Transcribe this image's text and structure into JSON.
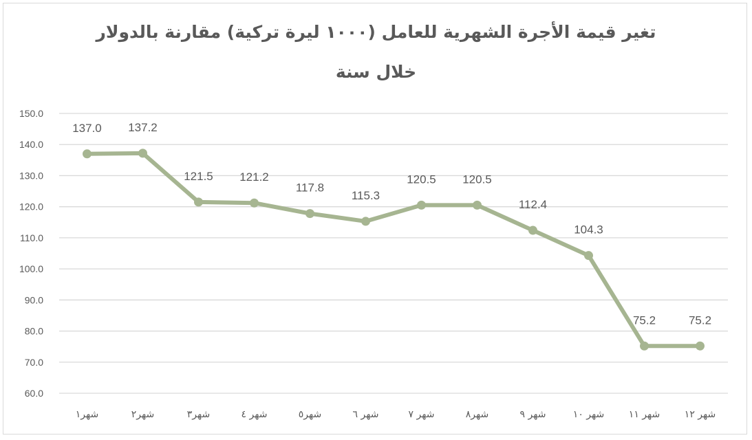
{
  "chart_data": {
    "type": "line",
    "title_line1": "تغير قيمة الأجرة الشهرية للعامل (١٠٠٠ ليرة تركية) مقارنة بالدولار",
    "title_line2": "خلال سنة",
    "categories": [
      "شهر١",
      "شهر٢",
      "شهر٣",
      "شهر ٤",
      "شهر٥",
      "شهر ٦",
      "شهر ٧",
      "شهر٨",
      "شهر ٩",
      "شهر ١٠",
      "شهر ١١",
      "شهر ١٢"
    ],
    "series": [
      {
        "values": [
          137.0,
          137.2,
          121.5,
          121.2,
          117.8,
          115.3,
          120.5,
          120.5,
          112.4,
          104.3,
          75.2,
          75.2
        ],
        "labels": [
          "137.0",
          "137.2",
          "121.5",
          "121.2",
          "117.8",
          "115.3",
          "120.5",
          "120.5",
          "112.4",
          "104.3",
          "75.2",
          "75.2"
        ]
      }
    ],
    "y_ticks": [
      "60.0",
      "70.0",
      "80.0",
      "90.0",
      "100.0",
      "110.0",
      "120.0",
      "130.0",
      "140.0",
      "150.0"
    ],
    "ylim": [
      60,
      150
    ],
    "ystep": 10,
    "grid": true,
    "legend": "none",
    "colors": {
      "line": "#a6b591",
      "gridline": "#d9d9d9",
      "text": "#595959",
      "border": "#d9d9d9"
    }
  }
}
